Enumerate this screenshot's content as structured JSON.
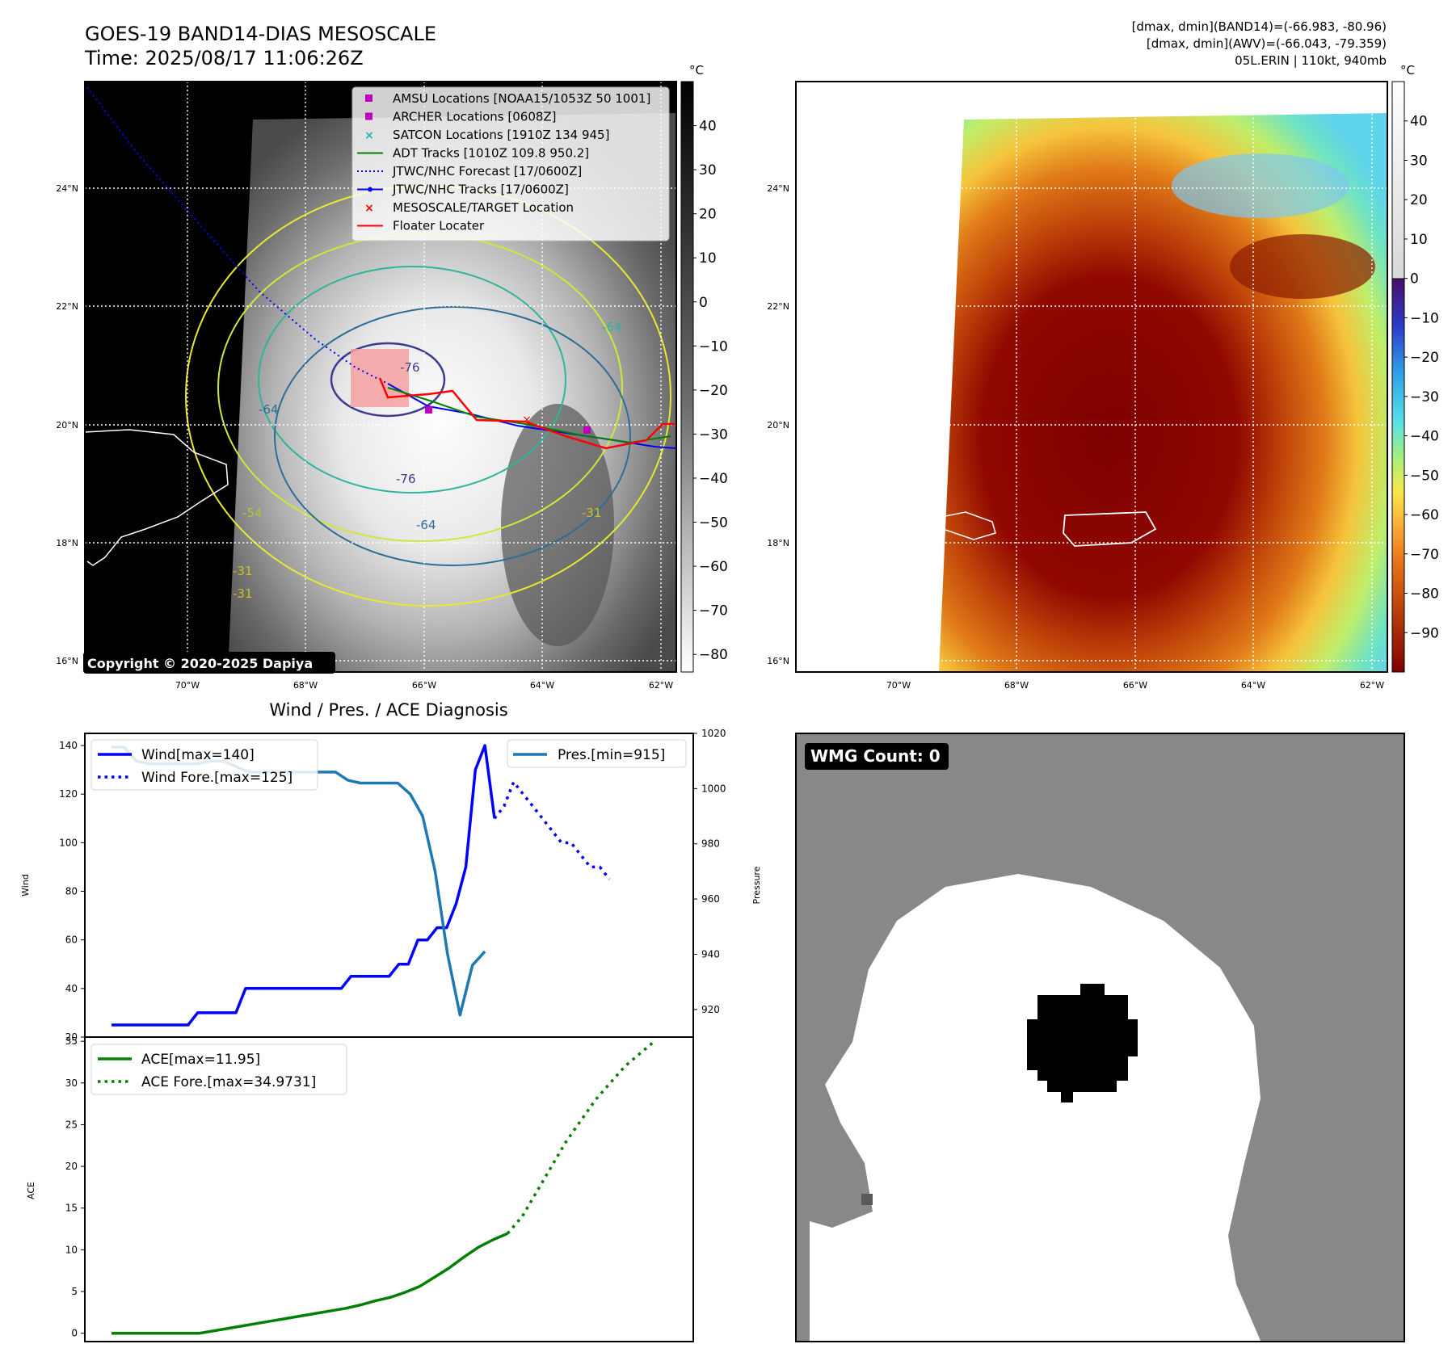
{
  "header": {
    "title_line1": "GOES-19 BAND14-DIAS MESOSCALE",
    "title_line2": "Time: 2025/08/17 11:06:26Z",
    "stats_line1": "[dmax, dmin](BAND14)=(-66.983, -80.96)",
    "stats_line2": "[dmax, dmin](AWV)=(-66.043, -79.359)",
    "stats_line3": "05L.ERIN | 110kt, 940mb"
  },
  "map_axes": {
    "lon_labels": [
      "70°W",
      "68°W",
      "66°W",
      "64°W",
      "62°W"
    ],
    "lat_labels": [
      "24°N",
      "22°N",
      "20°N",
      "18°N",
      "16°N"
    ],
    "lon_values": [
      -70,
      -68,
      -66,
      -64,
      -62
    ],
    "lat_values": [
      24,
      22,
      20,
      18,
      16
    ]
  },
  "colorbar_ir": {
    "unit": "°C",
    "ticks": [
      "40",
      "30",
      "20",
      "10",
      "0",
      "−10",
      "−20",
      "−30",
      "−40",
      "−50",
      "−60",
      "−70",
      "−80"
    ],
    "range": [
      -84,
      50
    ]
  },
  "colorbar_awv": {
    "unit": "°C",
    "ticks": [
      "40",
      "30",
      "20",
      "10",
      "0",
      "−10",
      "−20",
      "−30",
      "−40",
      "−50",
      "−60",
      "−70",
      "−80",
      "−90"
    ],
    "range": [
      -100,
      50
    ]
  },
  "legend": [
    {
      "label": "AMSU Locations [NOAA15/1053Z 50 1001]",
      "kind": "square",
      "color": "#c000c0"
    },
    {
      "label": "ARCHER Locations [0608Z]",
      "kind": "square",
      "color": "#c000c0"
    },
    {
      "label": "SATCON Locations [1910Z 134 945]",
      "kind": "x",
      "color": "#20b2b2"
    },
    {
      "label": "ADT Tracks [1010Z 109.8 950.2]",
      "kind": "line",
      "color": "#008000"
    },
    {
      "label": "JTWC/NHC Forecast [17/0600Z]",
      "kind": "dotted",
      "color": "#0000ff"
    },
    {
      "label": "JTWC/NHC Tracks [17/0600Z]",
      "kind": "linedot",
      "color": "#0000ff"
    },
    {
      "label": "MESOSCALE/TARGET Location",
      "kind": "x",
      "color": "#ff0000"
    },
    {
      "label": "Floater Locater",
      "kind": "line",
      "color": "#ff0000"
    }
  ],
  "contour_labels": [
    "-76",
    "-76",
    "-64",
    "-64",
    "-64",
    "-54",
    "-31",
    "-31",
    "-31"
  ],
  "copyright": "Copyright © 2020-2025 Dapiya",
  "wmg_count": "WMG Count: 0",
  "colors": {
    "wind": "#0000ff",
    "pressure": "#1f77b4",
    "ace": "#008000",
    "floater": "#ff0000"
  },
  "chart_data": [
    {
      "type": "line",
      "title": "Wind / Pres. / ACE Diagnosis",
      "ylabel": "Wind",
      "ylim": [
        20,
        145
      ],
      "yticks": [
        20,
        40,
        60,
        80,
        100,
        120,
        140
      ],
      "series": [
        {
          "name": "Wind[max=140]",
          "style": "solid",
          "values": [
            25,
            25,
            25,
            25,
            25,
            25,
            25,
            25,
            25,
            30,
            30,
            30,
            30,
            30,
            40,
            40,
            40,
            40,
            40,
            40,
            40,
            40,
            40,
            40,
            40,
            45,
            45,
            45,
            45,
            45,
            50,
            50,
            60,
            60,
            65,
            65,
            75,
            90,
            130,
            140,
            110
          ]
        },
        {
          "name": "Wind Fore.[max=125]",
          "style": "dotted",
          "values": [
            110,
            115,
            125,
            120,
            115,
            110,
            105,
            100,
            100,
            95,
            90,
            90,
            85
          ]
        }
      ]
    },
    {
      "type": "line",
      "ylabel": "Pressure",
      "ylim": [
        910,
        1020
      ],
      "yticks": [
        920,
        940,
        960,
        980,
        1000,
        1020
      ],
      "series": [
        {
          "name": "Pres.[min=915]",
          "style": "solid",
          "values": [
            1015,
            1015,
            1010,
            1009,
            1009,
            1009,
            1009,
            1009,
            1010,
            1010,
            1008,
            1006,
            1006,
            1006,
            1006,
            1006,
            1006,
            1006,
            1006,
            1003,
            1002,
            1002,
            1002,
            1002,
            998,
            990,
            970,
            940,
            918,
            936,
            941
          ]
        }
      ]
    },
    {
      "type": "line",
      "ylabel": "ACE",
      "ylim": [
        -1,
        35.5
      ],
      "yticks": [
        0,
        5,
        10,
        15,
        20,
        25,
        30,
        35
      ],
      "series": [
        {
          "name": "ACE[max=11.95]",
          "style": "solid",
          "values": [
            0,
            0,
            0,
            0,
            0,
            0,
            0,
            0.3,
            0.6,
            0.9,
            1.2,
            1.5,
            1.8,
            2.1,
            2.4,
            2.7,
            3.0,
            3.4,
            3.9,
            4.3,
            4.9,
            5.6,
            6.7,
            7.8,
            9.1,
            10.3,
            11.2,
            11.95
          ]
        },
        {
          "name": "ACE Fore.[max=34.9731]",
          "style": "dotted",
          "values": [
            11.95,
            14,
            17,
            20,
            23,
            25.5,
            28,
            30,
            32,
            33.5,
            34.9731
          ]
        }
      ]
    }
  ]
}
